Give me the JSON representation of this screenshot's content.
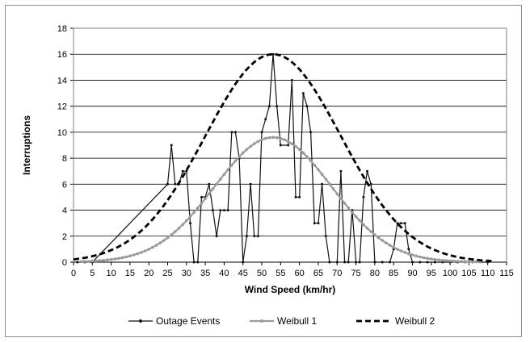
{
  "chart_data": {
    "type": "line",
    "title": "",
    "xlabel": "Wind Speed (km/hr)",
    "ylabel": "Interruptions",
    "xlim": [
      0,
      115
    ],
    "ylim": [
      0,
      18
    ],
    "x_ticks": [
      0,
      5,
      10,
      15,
      20,
      25,
      30,
      35,
      40,
      45,
      50,
      55,
      60,
      65,
      70,
      75,
      80,
      85,
      90,
      95,
      100,
      105,
      110,
      115
    ],
    "y_ticks": [
      0,
      2,
      4,
      6,
      8,
      10,
      12,
      14,
      16,
      18
    ],
    "grid": "horizontal",
    "legend_position": "bottom",
    "series": [
      {
        "name": "Outage Events",
        "color": "#111111",
        "style": "solid-markers",
        "points": [
          [
            1,
            0
          ],
          [
            3,
            0
          ],
          [
            5,
            0
          ],
          [
            25,
            6
          ],
          [
            26,
            9
          ],
          [
            27,
            6
          ],
          [
            28,
            6
          ],
          [
            29,
            7
          ],
          [
            30,
            7
          ],
          [
            31,
            3
          ],
          [
            32,
            0
          ],
          [
            33,
            0
          ],
          [
            34,
            5
          ],
          [
            35,
            5
          ],
          [
            36,
            6
          ],
          [
            37,
            4
          ],
          [
            38,
            2
          ],
          [
            39,
            4
          ],
          [
            40,
            4
          ],
          [
            41,
            4
          ],
          [
            42,
            10
          ],
          [
            43,
            10
          ],
          [
            44,
            8
          ],
          [
            45,
            0
          ],
          [
            46,
            2
          ],
          [
            47,
            6
          ],
          [
            48,
            2
          ],
          [
            49,
            2
          ],
          [
            50,
            10
          ],
          [
            51,
            11
          ],
          [
            52,
            12
          ],
          [
            53,
            16
          ],
          [
            54,
            12
          ],
          [
            55,
            9
          ],
          [
            57,
            9
          ],
          [
            58,
            14
          ],
          [
            59,
            5
          ],
          [
            60,
            5
          ],
          [
            61,
            13
          ],
          [
            62,
            12
          ],
          [
            63,
            10
          ],
          [
            64,
            3
          ],
          [
            65,
            3
          ],
          [
            66,
            6
          ],
          [
            67,
            2
          ],
          [
            68,
            0
          ],
          [
            70,
            0
          ],
          [
            71,
            7
          ],
          [
            72,
            0
          ],
          [
            73,
            0
          ],
          [
            74,
            4
          ],
          [
            75,
            0
          ],
          [
            76,
            0
          ],
          [
            77,
            5
          ],
          [
            78,
            7
          ],
          [
            79,
            6
          ],
          [
            80,
            0
          ],
          [
            82,
            0
          ],
          [
            84,
            0
          ],
          [
            85,
            1
          ],
          [
            86,
            3
          ],
          [
            87,
            3
          ],
          [
            88,
            3
          ],
          [
            89,
            1
          ],
          [
            90,
            0
          ],
          [
            92,
            0
          ],
          [
            94,
            0
          ],
          [
            96,
            0
          ],
          [
            98,
            0
          ],
          [
            100,
            0
          ],
          [
            102,
            0
          ],
          [
            104,
            0
          ],
          [
            106,
            0
          ],
          [
            108,
            0
          ],
          [
            110,
            0
          ]
        ]
      },
      {
        "name": "Weibull 1",
        "color": "#9a9a9a",
        "style": "solid-markers",
        "gauss": {
          "peak": 9.6,
          "center": 53,
          "sigma": 15.5,
          "start": 2,
          "end": 108,
          "step": 1
        }
      },
      {
        "name": "Weibull 2",
        "color": "#000000",
        "style": "dashed",
        "gauss": {
          "peak": 16,
          "center": 53,
          "sigma": 18,
          "start": 0,
          "end": 111,
          "step": 1
        }
      }
    ]
  }
}
